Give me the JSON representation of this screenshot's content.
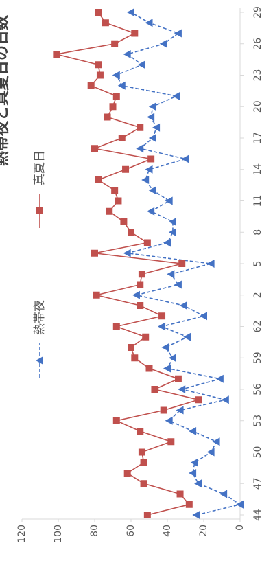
{
  "chart_data": {
    "type": "line",
    "title": "熱帯夜と真夏日の日数",
    "categories": [
      "44",
      null,
      null,
      "47",
      null,
      null,
      "50",
      null,
      null,
      "53",
      null,
      null,
      "56",
      null,
      null,
      "59",
      null,
      null,
      "62",
      null,
      null,
      "2",
      null,
      null,
      "5",
      null,
      null,
      "8",
      null,
      null,
      "11",
      null,
      null,
      "14",
      null,
      null,
      "17",
      null,
      null,
      "20",
      null,
      null,
      "23",
      null,
      null,
      "26",
      null,
      null,
      "29"
    ],
    "series": [
      {
        "name": "熱帯夜",
        "color": "#4472c4",
        "marker": "triangle",
        "dashed": true,
        "values": [
          24,
          0,
          9,
          23,
          26,
          25,
          16,
          13,
          26,
          39,
          33,
          8,
          32,
          11,
          40,
          37,
          41,
          29,
          43,
          20,
          31,
          57,
          34,
          38,
          16,
          62,
          40,
          37,
          37,
          49,
          39,
          48,
          52,
          50,
          30,
          55,
          48,
          46,
          49,
          48,
          35,
          65,
          68,
          54,
          62,
          42,
          34,
          50,
          60
        ]
      },
      {
        "name": "真夏日",
        "color": "#c0504d",
        "marker": "square",
        "dashed": false,
        "values": [
          51,
          28,
          33,
          53,
          62,
          53,
          54,
          38,
          55,
          68,
          42,
          23,
          47,
          34,
          50,
          58,
          60,
          52,
          68,
          43,
          55,
          79,
          55,
          54,
          32,
          80,
          51,
          60,
          64,
          72,
          67,
          69,
          78,
          63,
          49,
          80,
          65,
          55,
          73,
          70,
          68,
          82,
          77,
          78,
          101,
          69,
          58,
          74,
          78
        ]
      }
    ],
    "ylim": [
      0,
      120
    ],
    "yticks": [
      0,
      20,
      40,
      60,
      80,
      100,
      120
    ]
  }
}
